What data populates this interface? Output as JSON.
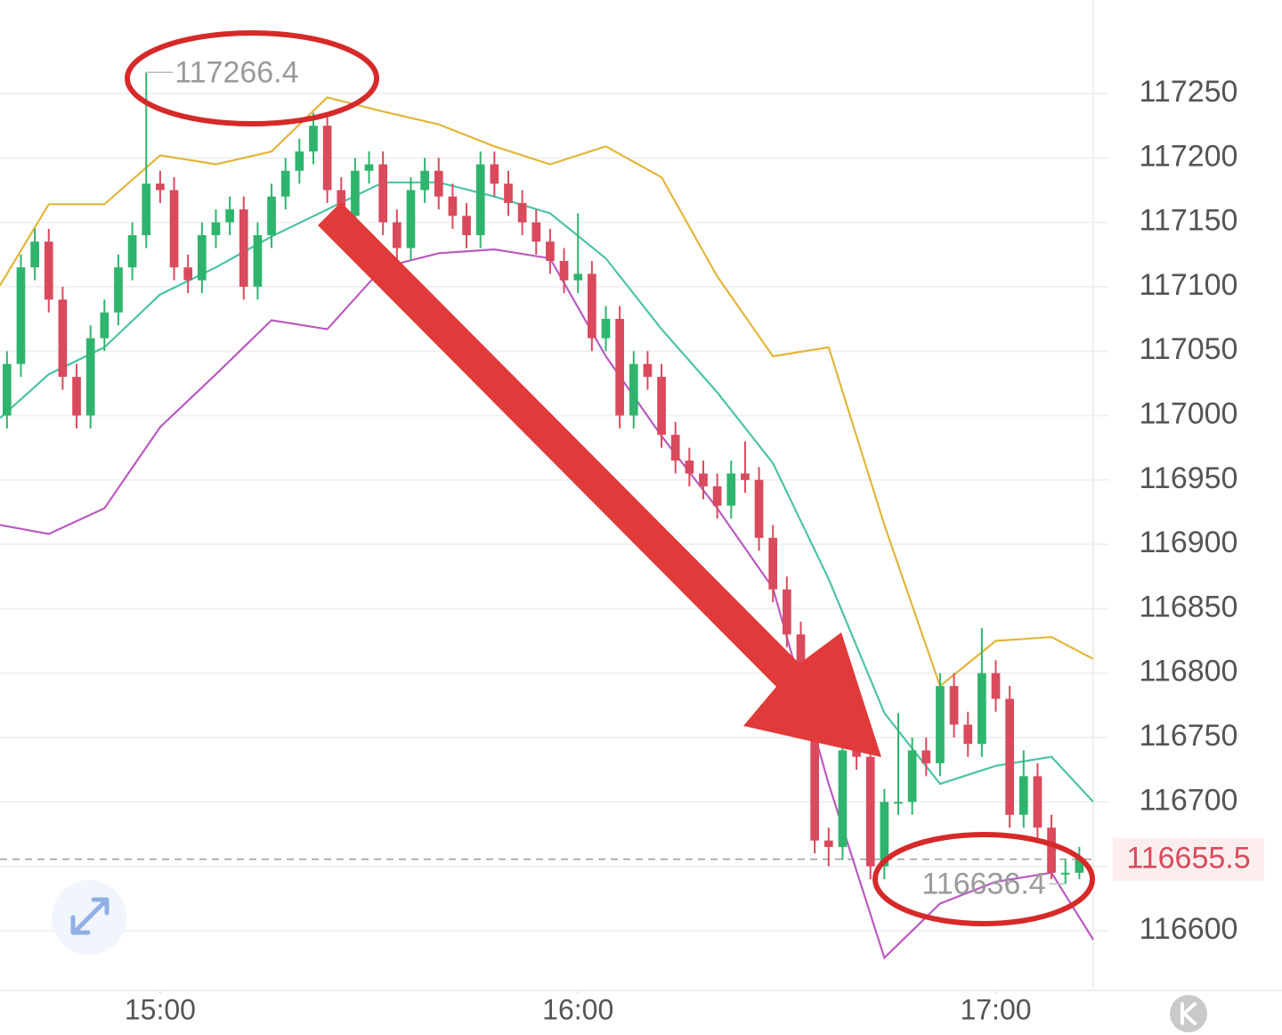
{
  "chart_data": {
    "type": "candlestick",
    "x": [
      -22,
      -20,
      -18,
      -16,
      -14,
      -12,
      -10,
      -8,
      -6,
      -4,
      -2,
      0,
      2,
      4,
      6,
      8,
      10,
      12,
      14,
      16,
      18,
      20,
      22,
      24,
      26,
      28,
      30,
      32,
      34,
      36,
      38,
      40,
      42,
      44,
      46,
      48,
      50,
      52,
      54,
      56,
      58,
      60,
      62,
      64,
      66,
      68,
      70,
      72,
      74,
      76,
      78,
      80,
      82,
      84,
      86,
      88,
      90,
      92,
      94,
      96,
      98,
      100,
      102,
      104,
      106,
      108,
      110,
      112,
      114,
      116,
      118,
      120,
      122,
      124,
      126,
      128,
      130,
      132
    ],
    "open": [
      117000,
      117040,
      117115,
      117135,
      117090,
      117030,
      117000,
      117060,
      117080,
      117115,
      117140,
      117180,
      117175,
      117115,
      117105,
      117140,
      117150,
      117160,
      117100,
      117140,
      117170,
      117190,
      117205,
      117225,
      117175,
      117155,
      117190,
      117195,
      117150,
      117130,
      117175,
      117190,
      117170,
      117155,
      117140,
      117195,
      117180,
      117165,
      117150,
      117135,
      117120,
      117105,
      117110,
      117060,
      117075,
      117000,
      117040,
      117030,
      116985,
      116965,
      116955,
      116945,
      116930,
      116955,
      116950,
      116905,
      116865,
      116830,
      116780,
      116670,
      116665,
      116740,
      116735,
      116650,
      116700,
      116700,
      116740,
      116730,
      116790,
      116760,
      116745,
      116800,
      116780,
      116690,
      116720,
      116680,
      116645,
      116645
    ],
    "high": [
      117050,
      117125,
      117145,
      117145,
      117100,
      117040,
      117070,
      117090,
      117125,
      117150,
      117266.4,
      117190,
      117185,
      117125,
      117150,
      117160,
      117170,
      117170,
      117150,
      117180,
      117200,
      117215,
      117235,
      117235,
      117185,
      117200,
      117205,
      117205,
      117160,
      117185,
      117200,
      117200,
      117180,
      117165,
      117205,
      117205,
      117190,
      117175,
      117160,
      117145,
      117130,
      117157,
      117120,
      117085,
      117085,
      117050,
      117050,
      117040,
      116995,
      116975,
      116965,
      116955,
      116965,
      116980,
      116960,
      116915,
      116875,
      116840,
      116790,
      116680,
      116750,
      116750,
      116745,
      116710,
      116769,
      116750,
      116750,
      116800,
      116800,
      116770,
      116835,
      116810,
      116790,
      116740,
      116730,
      116690,
      116655,
      116665
    ],
    "low": [
      116990,
      117030,
      117105,
      117080,
      117020,
      116990,
      116990,
      117050,
      117070,
      117105,
      117130,
      117165,
      117105,
      117095,
      117095,
      117130,
      117140,
      117090,
      117090,
      117130,
      117160,
      117180,
      117195,
      117165,
      117145,
      117145,
      117180,
      117140,
      117120,
      117120,
      117165,
      117160,
      117145,
      117130,
      117130,
      117170,
      117155,
      117140,
      117125,
      117110,
      117095,
      117095,
      117050,
      117050,
      116990,
      116990,
      117020,
      116975,
      116955,
      116945,
      116935,
      116920,
      116920,
      116940,
      116895,
      116855,
      116820,
      116770,
      116660,
      116650,
      116655,
      116725,
      116640,
      116640,
      116690,
      116690,
      116720,
      116720,
      116750,
      116735,
      116735,
      116770,
      116680,
      116680,
      116670,
      116640,
      116636.4,
      116640
    ],
    "close": [
      117040,
      117115,
      117135,
      117090,
      117030,
      117000,
      117060,
      117080,
      117115,
      117140,
      117180,
      117175,
      117115,
      117105,
      117140,
      117150,
      117160,
      117100,
      117140,
      117170,
      117190,
      117205,
      117225,
      117175,
      117155,
      117190,
      117195,
      117150,
      117130,
      117175,
      117190,
      117170,
      117155,
      117140,
      117195,
      117180,
      117165,
      117150,
      117135,
      117120,
      117105,
      117110,
      117060,
      117075,
      117000,
      117040,
      117030,
      116985,
      116965,
      116955,
      116945,
      116930,
      116955,
      116950,
      116905,
      116865,
      116830,
      116780,
      116670,
      116665,
      116740,
      116735,
      116650,
      116700,
      116700,
      116740,
      116730,
      116790,
      116760,
      116745,
      116800,
      116780,
      116690,
      116720,
      116680,
      116645,
      116645,
      116655.5
    ],
    "up_color": "#2fb46e",
    "down_color": "#d94a5c",
    "lines": {
      "x": [
        -23,
        -16,
        -8,
        0,
        8,
        16,
        24,
        32,
        40,
        48,
        56,
        64,
        72,
        80,
        88,
        96,
        104,
        112,
        120,
        128,
        134
      ],
      "series": [
        {
          "color": "#e3b53a",
          "values": [
            117101,
            117164,
            117164,
            117202,
            117195,
            117205,
            117247,
            117236,
            117226,
            117209,
            117195,
            117209,
            117185,
            117108,
            117046,
            117053,
            116915,
            116790,
            116825,
            116828,
            116811
          ]
        },
        {
          "color": "#4cc3a6",
          "values": [
            116998,
            117032,
            117053,
            117094,
            117115,
            117139,
            117160,
            117181,
            117181,
            117170,
            117157,
            117122,
            117067,
            117018,
            116963,
            116873,
            116769,
            116714,
            116728,
            116735,
            116700
          ]
        },
        {
          "color": "#b95bc0",
          "values": [
            116915,
            116908,
            116928,
            116991,
            117032,
            117074,
            117067,
            117115,
            117126,
            117129,
            117122,
            117046,
            116984,
            116928,
            116866,
            116714,
            116579,
            116621,
            116638,
            116645,
            116593
          ]
        }
      ]
    },
    "last_price": 116655.5,
    "xlim": [
      -23,
      134
    ],
    "ylim": [
      116553.6,
      117322.6
    ],
    "xticks": [
      {
        "value": 0,
        "label": "15:00"
      },
      {
        "value": 60,
        "label": "16:00"
      },
      {
        "value": 120,
        "label": "17:00"
      }
    ],
    "yticks": [
      116600,
      116650,
      116700,
      116750,
      116800,
      116850,
      116900,
      116950,
      117000,
      117050,
      117100,
      117150,
      117200,
      117250
    ],
    "grid": true
  }
}
